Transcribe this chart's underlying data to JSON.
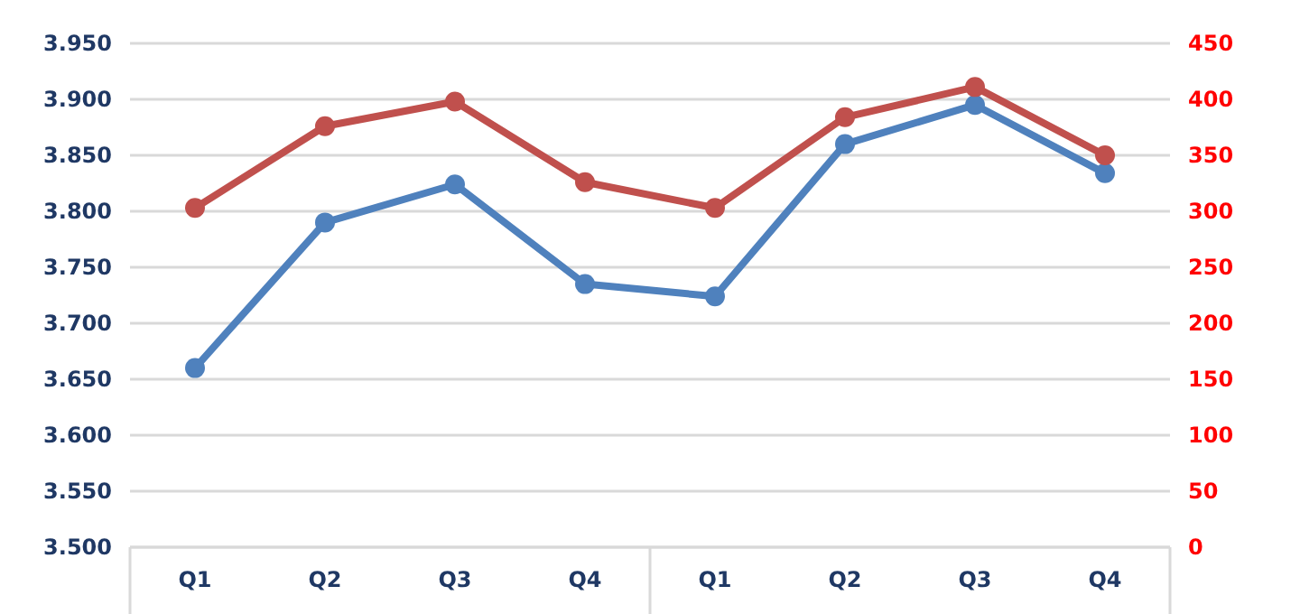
{
  "chart_data": {
    "type": "line",
    "categories": [
      "Q1",
      "Q2",
      "Q3",
      "Q4",
      "Q1",
      "Q2",
      "Q3",
      "Q4"
    ],
    "series": [
      {
        "color": "#4f81bd",
        "values": [
          3.66,
          3.79,
          3.824,
          3.735,
          3.724,
          3.86,
          3.895,
          3.834
        ]
      },
      {
        "color": "#c0504d",
        "axis": "y2",
        "values": [
          303,
          376,
          398,
          326,
          303,
          384,
          411,
          350
        ]
      }
    ],
    "ylim": [
      3.5,
      3.95
    ],
    "yticks": [
      {
        "value": 3.5,
        "label": "3.500"
      },
      {
        "value": 3.55,
        "label": "3.550"
      },
      {
        "value": 3.6,
        "label": "3.600"
      },
      {
        "value": 3.65,
        "label": "3.650"
      },
      {
        "value": 3.7,
        "label": "3.700"
      },
      {
        "value": 3.75,
        "label": "3.750"
      },
      {
        "value": 3.8,
        "label": "3.800"
      },
      {
        "value": 3.85,
        "label": "3.850"
      },
      {
        "value": 3.9,
        "label": "3.900"
      },
      {
        "value": 3.95,
        "label": "3.950"
      }
    ],
    "y2lim": [
      0,
      450
    ],
    "y2ticks": [
      0,
      50,
      100,
      150,
      200,
      250,
      300,
      350,
      400,
      450
    ],
    "grid": "y",
    "marker": "circle",
    "line_style": "solid"
  }
}
